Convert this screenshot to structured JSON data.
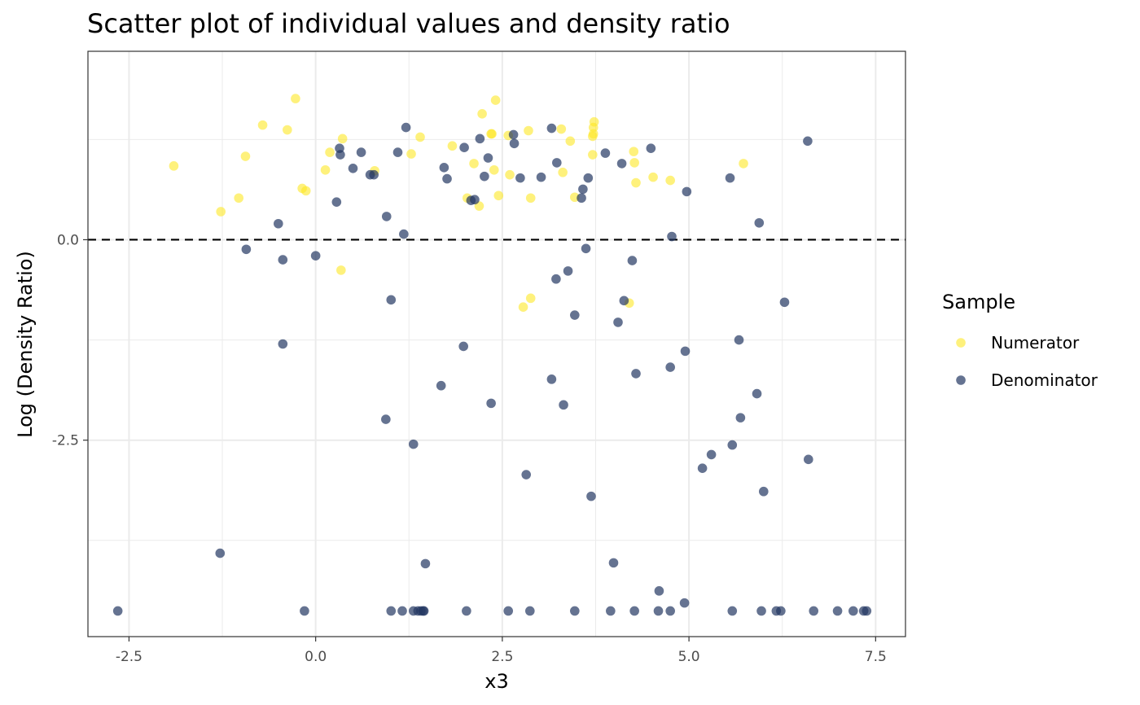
{
  "chart_data": {
    "type": "scatter",
    "title": "Scatter plot of individual values and density ratio",
    "xlabel": "x3",
    "ylabel": "Log (Density Ratio)",
    "xlim": [
      -3.05,
      7.9
    ],
    "ylim": [
      -4.95,
      2.35
    ],
    "x_ticks": [
      -2.5,
      0.0,
      2.5,
      5.0,
      7.5
    ],
    "x_tick_labels": [
      "-2.5",
      "0.0",
      "2.5",
      "5.0",
      "7.5"
    ],
    "y_ticks": [
      -2.5,
      0.0
    ],
    "y_tick_labels": [
      "-2.5",
      "0.0"
    ],
    "reference_line": {
      "y": 0,
      "style": "dashed"
    },
    "grid": true,
    "legend": {
      "title": "Sample",
      "placement": "right",
      "entries": [
        "Numerator",
        "Denominator"
      ]
    },
    "series": [
      {
        "name": "Numerator",
        "color": "#fde725",
        "points": [
          [
            -1.9,
            0.92
          ],
          [
            -1.27,
            0.35
          ],
          [
            -1.03,
            0.52
          ],
          [
            -0.94,
            1.04
          ],
          [
            -0.71,
            1.43
          ],
          [
            -0.38,
            1.37
          ],
          [
            -0.27,
            1.76
          ],
          [
            -0.18,
            0.64
          ],
          [
            -0.13,
            0.61
          ],
          [
            0.13,
            0.87
          ],
          [
            0.19,
            1.09
          ],
          [
            0.34,
            -0.38
          ],
          [
            0.36,
            1.26
          ],
          [
            0.79,
            0.86
          ],
          [
            1.28,
            1.07
          ],
          [
            1.4,
            1.28
          ],
          [
            1.83,
            1.17
          ],
          [
            2.03,
            0.52
          ],
          [
            2.12,
            0.95
          ],
          [
            2.19,
            0.42
          ],
          [
            2.23,
            1.57
          ],
          [
            2.35,
            1.32
          ],
          [
            2.36,
            1.32
          ],
          [
            2.39,
            0.87
          ],
          [
            2.41,
            1.74
          ],
          [
            2.45,
            0.55
          ],
          [
            2.58,
            1.3
          ],
          [
            2.6,
            0.81
          ],
          [
            2.78,
            -0.84
          ],
          [
            2.85,
            1.36
          ],
          [
            2.88,
            -0.73
          ],
          [
            2.88,
            0.52
          ],
          [
            3.29,
            1.38
          ],
          [
            3.31,
            0.84
          ],
          [
            3.41,
            1.23
          ],
          [
            3.47,
            0.53
          ],
          [
            3.71,
            1.06
          ],
          [
            3.71,
            1.29
          ],
          [
            3.72,
            1.32
          ],
          [
            3.72,
            1.4
          ],
          [
            3.73,
            1.47
          ],
          [
            4.2,
            -0.79
          ],
          [
            4.26,
            1.1
          ],
          [
            4.27,
            0.96
          ],
          [
            4.29,
            0.71
          ],
          [
            4.52,
            0.78
          ],
          [
            4.75,
            0.74
          ],
          [
            5.73,
            0.95
          ]
        ]
      },
      {
        "name": "Denominator",
        "color": "#233862",
        "points": [
          [
            -2.65,
            -4.63
          ],
          [
            -1.28,
            -3.91
          ],
          [
            -0.93,
            -0.12
          ],
          [
            -0.5,
            0.2
          ],
          [
            -0.44,
            -0.25
          ],
          [
            -0.44,
            -1.3
          ],
          [
            -0.15,
            -4.63
          ],
          [
            0.0,
            -0.2
          ],
          [
            0.28,
            0.47
          ],
          [
            0.32,
            1.14
          ],
          [
            0.33,
            1.06
          ],
          [
            0.5,
            0.89
          ],
          [
            0.61,
            1.09
          ],
          [
            0.73,
            0.81
          ],
          [
            0.78,
            0.81
          ],
          [
            0.94,
            -2.24
          ],
          [
            0.95,
            0.29
          ],
          [
            1.01,
            -0.75
          ],
          [
            1.01,
            -4.63
          ],
          [
            1.1,
            1.09
          ],
          [
            1.16,
            -4.63
          ],
          [
            1.18,
            0.07
          ],
          [
            1.21,
            1.4
          ],
          [
            1.31,
            -2.55
          ],
          [
            1.31,
            -4.63
          ],
          [
            1.37,
            -4.63
          ],
          [
            1.41,
            -4.63
          ],
          [
            1.44,
            -4.63
          ],
          [
            1.45,
            -4.63
          ],
          [
            1.47,
            -4.04
          ],
          [
            1.68,
            -1.82
          ],
          [
            1.72,
            0.9
          ],
          [
            1.76,
            0.76
          ],
          [
            1.98,
            -1.33
          ],
          [
            1.99,
            1.15
          ],
          [
            2.02,
            -4.63
          ],
          [
            2.08,
            0.49
          ],
          [
            2.13,
            0.5
          ],
          [
            2.2,
            1.26
          ],
          [
            2.26,
            0.79
          ],
          [
            2.31,
            1.02
          ],
          [
            2.35,
            -2.04
          ],
          [
            2.58,
            -4.63
          ],
          [
            2.65,
            1.31
          ],
          [
            2.66,
            1.2
          ],
          [
            2.74,
            0.77
          ],
          [
            2.82,
            -2.93
          ],
          [
            2.87,
            -4.63
          ],
          [
            3.02,
            0.78
          ],
          [
            3.16,
            -1.74
          ],
          [
            3.16,
            1.39
          ],
          [
            3.22,
            -0.49
          ],
          [
            3.23,
            0.96
          ],
          [
            3.32,
            -2.06
          ],
          [
            3.38,
            -0.39
          ],
          [
            3.47,
            -0.94
          ],
          [
            3.47,
            -4.63
          ],
          [
            3.56,
            0.52
          ],
          [
            3.58,
            0.63
          ],
          [
            3.62,
            -0.11
          ],
          [
            3.65,
            0.77
          ],
          [
            3.69,
            -3.2
          ],
          [
            3.88,
            1.08
          ],
          [
            3.95,
            -4.63
          ],
          [
            3.99,
            -4.03
          ],
          [
            4.05,
            -1.03
          ],
          [
            4.1,
            0.95
          ],
          [
            4.13,
            -0.76
          ],
          [
            4.24,
            -0.26
          ],
          [
            4.27,
            -4.63
          ],
          [
            4.29,
            -1.67
          ],
          [
            4.49,
            1.14
          ],
          [
            4.59,
            -4.63
          ],
          [
            4.6,
            -4.38
          ],
          [
            4.75,
            -1.59
          ],
          [
            4.75,
            -4.63
          ],
          [
            4.77,
            0.04
          ],
          [
            4.94,
            -4.53
          ],
          [
            4.95,
            -1.39
          ],
          [
            4.97,
            0.6
          ],
          [
            5.18,
            -2.85
          ],
          [
            5.3,
            -2.68
          ],
          [
            5.55,
            0.77
          ],
          [
            5.58,
            -2.56
          ],
          [
            5.58,
            -4.63
          ],
          [
            5.67,
            -1.25
          ],
          [
            5.69,
            -2.22
          ],
          [
            5.91,
            -1.92
          ],
          [
            5.94,
            0.21
          ],
          [
            5.97,
            -4.63
          ],
          [
            6.0,
            -3.14
          ],
          [
            6.17,
            -4.63
          ],
          [
            6.23,
            -4.63
          ],
          [
            6.28,
            -0.78
          ],
          [
            6.59,
            1.23
          ],
          [
            6.6,
            -2.74
          ],
          [
            6.67,
            -4.63
          ],
          [
            6.99,
            -4.63
          ],
          [
            7.2,
            -4.63
          ],
          [
            7.34,
            -4.63
          ],
          [
            7.38,
            -4.63
          ]
        ]
      }
    ]
  }
}
